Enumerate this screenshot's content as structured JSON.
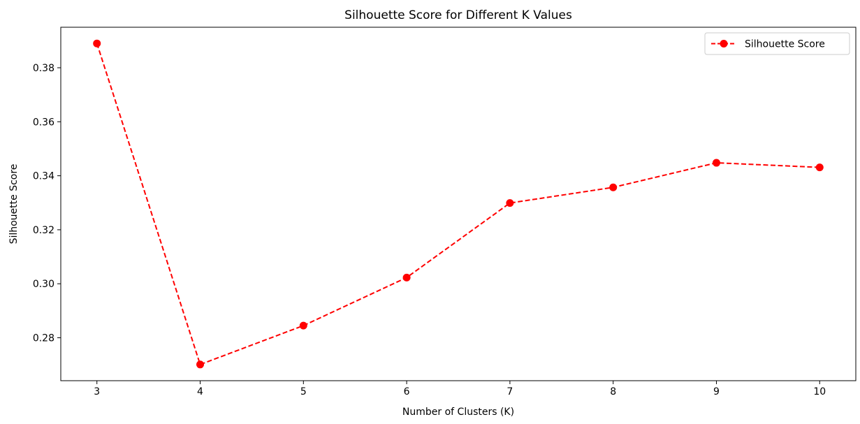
{
  "chart_data": {
    "type": "line",
    "title": "Silhouette Score for Different K Values",
    "xlabel": "Number of Clusters (K)",
    "ylabel": "Silhouette Score",
    "x": [
      3,
      4,
      5,
      6,
      7,
      8,
      9,
      10
    ],
    "series": [
      {
        "name": "Silhouette Score",
        "values": [
          0.389,
          0.2701,
          0.2845,
          0.3023,
          0.3299,
          0.3357,
          0.3448,
          0.3431
        ],
        "color": "#ff0000",
        "line_style": "dashed",
        "marker": "circle"
      }
    ],
    "xticks": [
      3,
      4,
      5,
      6,
      7,
      8,
      9,
      10
    ],
    "yticks": [
      0.28,
      0.3,
      0.32,
      0.34,
      0.36,
      0.38
    ],
    "ytick_labels": [
      "0.28",
      "0.30",
      "0.32",
      "0.34",
      "0.36",
      "0.38"
    ],
    "xlim": [
      2.65,
      10.35
    ],
    "ylim": [
      0.2641,
      0.395
    ],
    "grid": false,
    "legend_position": "top-right"
  }
}
